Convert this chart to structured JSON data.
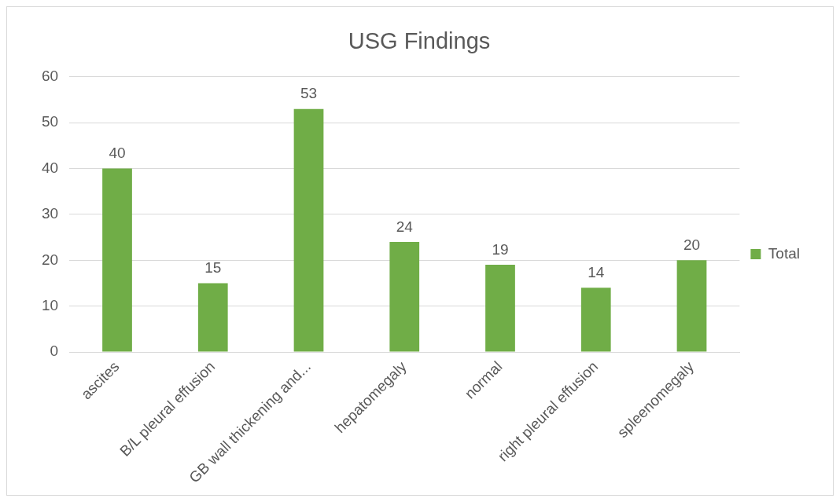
{
  "chart_data": {
    "type": "bar",
    "title": "USG Findings",
    "categories": [
      "ascites",
      "B/L pleural effusion",
      "GB wall thickening and...",
      "hepatomegaly",
      "normal",
      "right pleural effusion",
      "spleenomegaly"
    ],
    "series": [
      {
        "name": "Total",
        "color": "#70ad47",
        "values": [
          40,
          15,
          53,
          24,
          19,
          14,
          20
        ]
      }
    ],
    "ylim": [
      0,
      60
    ],
    "yticks": [
      0,
      10,
      20,
      30,
      40,
      50,
      60
    ],
    "grid": "y",
    "legend": "right",
    "data_labels": true
  }
}
